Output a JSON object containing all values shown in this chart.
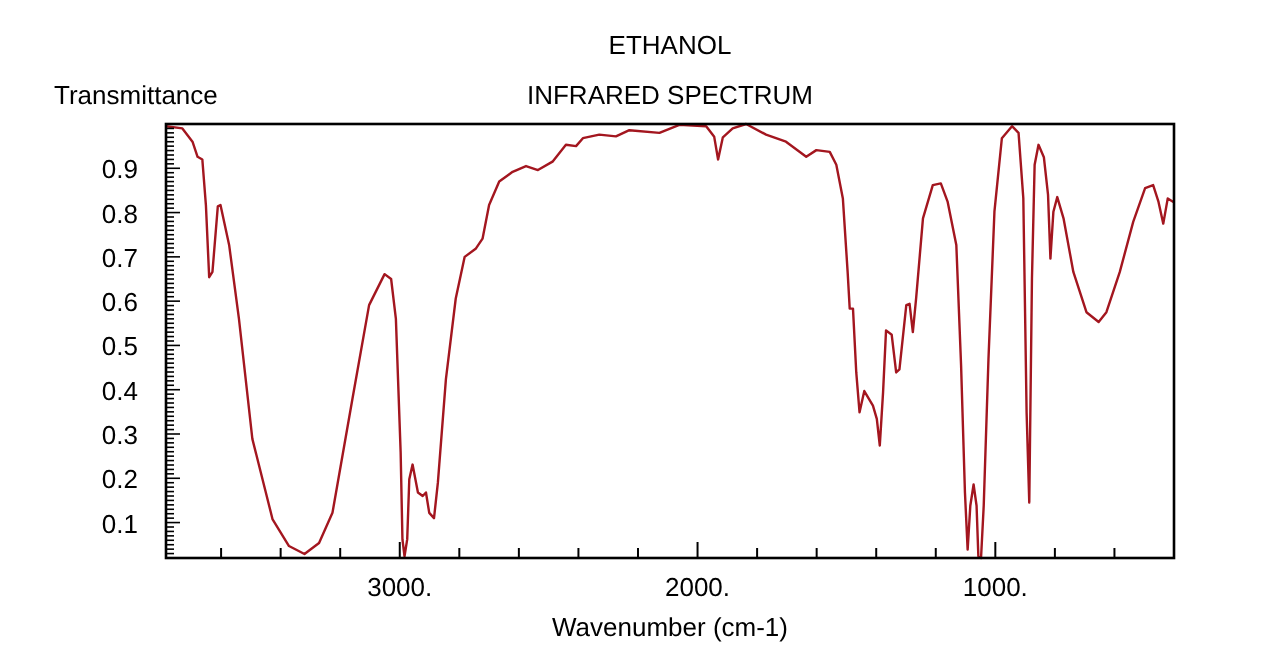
{
  "chart_data": {
    "type": "line",
    "title": "ETHANOL",
    "subtitle": "INFRARED SPECTRUM",
    "xlabel": "Wavenumber (cm-1)",
    "ylabel": "Transmittance",
    "x": [
      3785,
      3730,
      3696,
      3679,
      3663,
      3651,
      3640,
      3629,
      3611,
      3602,
      3573,
      3540,
      3495,
      3427,
      3372,
      3320,
      3271,
      3226,
      3159,
      3103,
      3051,
      3029,
      3013,
      2997,
      2991,
      2984,
      2975,
      2968,
      2957,
      2939,
      2923,
      2912,
      2901,
      2885,
      2872,
      2845,
      2812,
      2782,
      2744,
      2722,
      2700,
      2666,
      2621,
      2576,
      2536,
      2487,
      2442,
      2408,
      2385,
      2330,
      2274,
      2229,
      2128,
      2061,
      1971,
      1944,
      1931,
      1915,
      1882,
      1837,
      1770,
      1703,
      1635,
      1601,
      1556,
      1534,
      1512,
      1496,
      1489,
      1478,
      1467,
      1456,
      1440,
      1411,
      1398,
      1388,
      1377,
      1367,
      1348,
      1333,
      1322,
      1299,
      1288,
      1277,
      1266,
      1243,
      1210,
      1183,
      1160,
      1131,
      1115,
      1102,
      1093,
      1084,
      1073,
      1063,
      1057,
      1048,
      1039,
      1023,
      1003,
      978,
      944,
      922,
      906,
      895,
      886,
      877,
      868,
      855,
      837,
      823,
      815,
      805,
      792,
      771,
      738,
      694,
      653,
      627,
      582,
      537,
      497,
      470,
      452,
      436,
      421,
      402
    ],
    "series": [
      {
        "color": "#a3161f",
        "values": [
          0.995,
          0.99,
          0.96,
          0.926,
          0.92,
          0.817,
          0.654,
          0.666,
          0.814,
          0.817,
          0.727,
          0.56,
          0.289,
          0.107,
          0.047,
          0.029,
          0.054,
          0.122,
          0.379,
          0.591,
          0.661,
          0.65,
          0.56,
          0.258,
          0.062,
          0.024,
          0.062,
          0.198,
          0.231,
          0.168,
          0.16,
          0.168,
          0.122,
          0.11,
          0.19,
          0.424,
          0.606,
          0.7,
          0.719,
          0.741,
          0.817,
          0.87,
          0.892,
          0.905,
          0.896,
          0.915,
          0.953,
          0.95,
          0.968,
          0.976,
          0.972,
          0.986,
          0.98,
          0.998,
          0.995,
          0.971,
          0.92,
          0.97,
          0.99,
          1.0,
          0.976,
          0.96,
          0.926,
          0.941,
          0.937,
          0.908,
          0.832,
          0.666,
          0.583,
          0.583,
          0.439,
          0.349,
          0.397,
          0.364,
          0.334,
          0.274,
          0.394,
          0.534,
          0.524,
          0.439,
          0.446,
          0.591,
          0.594,
          0.53,
          0.606,
          0.787,
          0.862,
          0.866,
          0.824,
          0.727,
          0.455,
          0.168,
          0.039,
          0.138,
          0.186,
          0.138,
          0.024,
          0.02,
          0.138,
          0.47,
          0.802,
          0.968,
          0.995,
          0.98,
          0.832,
          0.349,
          0.145,
          0.651,
          0.908,
          0.953,
          0.925,
          0.84,
          0.696,
          0.802,
          0.835,
          0.787,
          0.666,
          0.575,
          0.553,
          0.575,
          0.666,
          0.779,
          0.855,
          0.862,
          0.824,
          0.775,
          0.832,
          0.824
        ]
      }
    ],
    "xlim": [
      3785,
      400
    ],
    "ylim": [
      0.02,
      1.0
    ],
    "xticks": [
      {
        "value": 3600,
        "label": null
      },
      {
        "value": 3400,
        "label": null
      },
      {
        "value": 3200,
        "label": null
      },
      {
        "value": 3000,
        "label": "3000."
      },
      {
        "value": 2800,
        "label": null
      },
      {
        "value": 2600,
        "label": null
      },
      {
        "value": 2400,
        "label": null
      },
      {
        "value": 2200,
        "label": null
      },
      {
        "value": 2000,
        "label": "2000."
      },
      {
        "value": 1800,
        "label": null
      },
      {
        "value": 1600,
        "label": null
      },
      {
        "value": 1400,
        "label": null
      },
      {
        "value": 1200,
        "label": null
      },
      {
        "value": 1000,
        "label": "1000."
      },
      {
        "value": 800,
        "label": null
      },
      {
        "value": 600,
        "label": null
      },
      {
        "value": 400,
        "label": null
      }
    ],
    "yticks": [
      {
        "value": 0.02,
        "label": null
      },
      {
        "value": 0.03,
        "label": null
      },
      {
        "value": 0.04,
        "label": null
      },
      {
        "value": 0.05,
        "label": null
      },
      {
        "value": 0.06,
        "label": null
      },
      {
        "value": 0.07,
        "label": null
      },
      {
        "value": 0.08,
        "label": null
      },
      {
        "value": 0.09,
        "label": null
      },
      0.1,
      {
        "value": 0.11,
        "label": null
      },
      {
        "value": 0.12,
        "label": null
      },
      {
        "value": 0.13,
        "label": null
      },
      {
        "value": 0.14,
        "label": null
      },
      {
        "value": 0.15,
        "label": null
      },
      {
        "value": 0.16,
        "label": null
      },
      {
        "value": 0.17,
        "label": null
      },
      {
        "value": 0.18,
        "label": null
      },
      {
        "value": 0.19,
        "label": null
      },
      0.2,
      {
        "value": 0.21,
        "label": null
      },
      {
        "value": 0.22,
        "label": null
      },
      {
        "value": 0.23,
        "label": null
      },
      {
        "value": 0.24,
        "label": null
      },
      {
        "value": 0.25,
        "label": null
      },
      {
        "value": 0.26,
        "label": null
      },
      {
        "value": 0.27,
        "label": null
      },
      {
        "value": 0.28,
        "label": null
      },
      {
        "value": 0.29,
        "label": null
      },
      0.3,
      {
        "value": 0.31,
        "label": null
      },
      {
        "value": 0.32,
        "label": null
      },
      {
        "value": 0.33,
        "label": null
      },
      {
        "value": 0.34,
        "label": null
      },
      {
        "value": 0.35,
        "label": null
      },
      {
        "value": 0.36,
        "label": null
      },
      {
        "value": 0.37,
        "label": null
      },
      {
        "value": 0.38,
        "label": null
      },
      {
        "value": 0.39,
        "label": null
      },
      0.4,
      {
        "value": 0.41,
        "label": null
      },
      {
        "value": 0.42,
        "label": null
      },
      {
        "value": 0.43,
        "label": null
      },
      {
        "value": 0.44,
        "label": null
      },
      {
        "value": 0.45,
        "label": null
      },
      {
        "value": 0.46,
        "label": null
      },
      {
        "value": 0.47,
        "label": null
      },
      {
        "value": 0.48,
        "label": null
      },
      {
        "value": 0.49,
        "label": null
      },
      0.5,
      {
        "value": 0.51,
        "label": null
      },
      {
        "value": 0.52,
        "label": null
      },
      {
        "value": 0.53,
        "label": null
      },
      {
        "value": 0.54,
        "label": null
      },
      {
        "value": 0.55,
        "label": null
      },
      {
        "value": 0.56,
        "label": null
      },
      {
        "value": 0.57,
        "label": null
      },
      {
        "value": 0.58,
        "label": null
      },
      {
        "value": 0.59,
        "label": null
      },
      0.6,
      {
        "value": 0.61,
        "label": null
      },
      {
        "value": 0.62,
        "label": null
      },
      {
        "value": 0.63,
        "label": null
      },
      {
        "value": 0.64,
        "label": null
      },
      {
        "value": 0.65,
        "label": null
      },
      {
        "value": 0.66,
        "label": null
      },
      {
        "value": 0.67,
        "label": null
      },
      {
        "value": 0.68,
        "label": null
      },
      {
        "value": 0.69,
        "label": null
      },
      0.7,
      {
        "value": 0.71,
        "label": null
      },
      {
        "value": 0.72,
        "label": null
      },
      {
        "value": 0.73,
        "label": null
      },
      {
        "value": 0.74,
        "label": null
      },
      {
        "value": 0.75,
        "label": null
      },
      {
        "value": 0.76,
        "label": null
      },
      {
        "value": 0.77,
        "label": null
      },
      {
        "value": 0.78,
        "label": null
      },
      {
        "value": 0.79,
        "label": null
      },
      0.8,
      {
        "value": 0.81,
        "label": null
      },
      {
        "value": 0.82,
        "label": null
      },
      {
        "value": 0.83,
        "label": null
      },
      {
        "value": 0.84,
        "label": null
      },
      {
        "value": 0.85,
        "label": null
      },
      {
        "value": 0.86,
        "label": null
      },
      {
        "value": 0.87,
        "label": null
      },
      {
        "value": 0.88,
        "label": null
      },
      {
        "value": 0.89,
        "label": null
      },
      0.9,
      {
        "value": 0.91,
        "label": null
      },
      {
        "value": 0.92,
        "label": null
      },
      {
        "value": 0.93,
        "label": null
      },
      {
        "value": 0.94,
        "label": null
      },
      {
        "value": 0.95,
        "label": null
      },
      {
        "value": 0.96,
        "label": null
      },
      {
        "value": 0.97,
        "label": null
      },
      {
        "value": 0.98,
        "label": null
      },
      {
        "value": 0.99,
        "label": null
      }
    ]
  }
}
